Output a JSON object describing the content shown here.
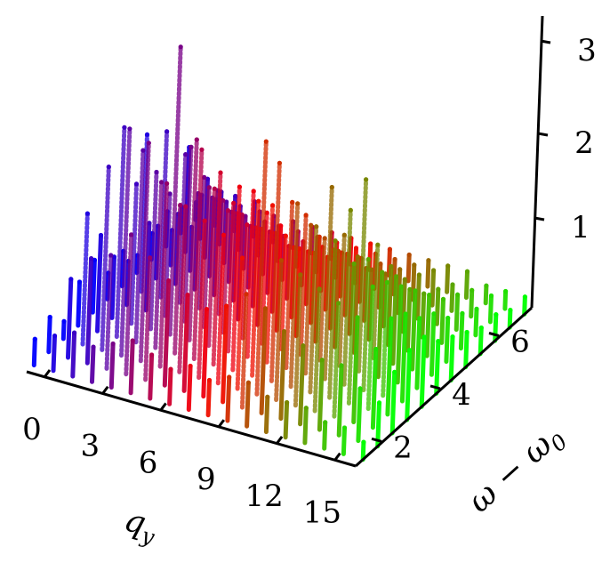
{
  "chart_data": {
    "type": "3d-scatter",
    "title": "",
    "x_axis": {
      "label": "q",
      "label_subscript": "y",
      "ticks": [
        "0",
        "3",
        "6",
        "9",
        "12",
        "15"
      ],
      "range": [
        0,
        17
      ]
    },
    "y_axis": {
      "label": "ω − ω",
      "label_subscript": "0",
      "ticks": [
        "2",
        "4",
        "6"
      ],
      "range": [
        1,
        7
      ]
    },
    "z_axis": {
      "label": "",
      "ticks": [
        "1",
        "2",
        "3"
      ],
      "range": [
        0,
        3.3
      ]
    },
    "color_gradient": {
      "along": "q_y",
      "stops": [
        "#0000ff",
        "#ff0000",
        "#00ff00"
      ]
    },
    "grid": false,
    "legend": "none",
    "series": [
      {
        "qy": 0,
        "heights": [
          0.3,
          0.4,
          0.2,
          0.5,
          0.6,
          0.3,
          0.4,
          0.2,
          0.3,
          0.4,
          0.3,
          0.2
        ]
      },
      {
        "qy": 1,
        "heights": [
          0.4,
          0.9,
          1.5,
          1.1,
          0.7,
          0.5,
          1.8,
          0.6,
          0.4,
          1.2,
          0.5,
          0.3
        ]
      },
      {
        "qy": 2,
        "heights": [
          0.5,
          1.2,
          2.1,
          2.4,
          1.6,
          1.0,
          1.9,
          0.8,
          0.5,
          0.9,
          0.6,
          0.4
        ]
      },
      {
        "qy": 3,
        "heights": [
          0.4,
          1.3,
          2.6,
          2.2,
          1.8,
          1.4,
          1.7,
          1.1,
          0.9,
          0.7,
          0.5,
          0.4
        ]
      },
      {
        "qy": 4,
        "heights": [
          0.5,
          1.6,
          2.5,
          1.9,
          3.3,
          2.0,
          1.5,
          1.2,
          0.8,
          0.6,
          0.5,
          0.3
        ]
      },
      {
        "qy": 5,
        "heights": [
          0.6,
          1.4,
          2.1,
          1.7,
          2.3,
          1.6,
          1.3,
          1.0,
          0.7,
          0.6,
          0.4,
          0.3
        ]
      },
      {
        "qy": 6,
        "heights": [
          0.5,
          1.2,
          1.9,
          2.4,
          1.8,
          1.4,
          1.2,
          0.9,
          0.7,
          0.5,
          0.4,
          0.3
        ]
      },
      {
        "qy": 7,
        "heights": [
          0.4,
          1.1,
          1.8,
          2.2,
          1.7,
          1.3,
          1.1,
          0.9,
          0.6,
          0.5,
          0.4,
          0.3
        ]
      },
      {
        "qy": 8,
        "heights": [
          0.5,
          1.0,
          1.7,
          2.1,
          1.9,
          1.5,
          1.2,
          0.8,
          0.6,
          0.5,
          0.4,
          0.3
        ]
      },
      {
        "qy": 9,
        "heights": [
          0.4,
          1.1,
          1.5,
          2.0,
          1.8,
          1.3,
          1.0,
          0.8,
          0.6,
          0.5,
          0.4,
          0.3
        ]
      },
      {
        "qy": 10,
        "heights": [
          0.5,
          1.3,
          2.9,
          2.5,
          1.9,
          1.6,
          1.2,
          0.9,
          0.7,
          0.5,
          0.4,
          0.3
        ]
      },
      {
        "qy": 11,
        "heights": [
          0.5,
          1.2,
          1.6,
          2.1,
          1.7,
          1.4,
          1.1,
          0.8,
          0.6,
          0.5,
          0.4,
          0.3
        ]
      },
      {
        "qy": 12,
        "heights": [
          0.4,
          1.0,
          1.5,
          1.9,
          2.2,
          1.5,
          1.1,
          0.8,
          0.6,
          0.5,
          0.4,
          0.3
        ]
      },
      {
        "qy": 13,
        "heights": [
          0.4,
          0.9,
          1.4,
          1.8,
          2.0,
          2.2,
          1.3,
          0.9,
          0.6,
          0.5,
          0.4,
          0.3
        ]
      },
      {
        "qy": 14,
        "heights": [
          0.4,
          0.8,
          1.3,
          1.6,
          1.5,
          1.2,
          1.0,
          0.7,
          0.5,
          0.4,
          0.3,
          0.3
        ]
      },
      {
        "qy": 15,
        "heights": [
          0.3,
          0.8,
          1.2,
          1.4,
          1.3,
          1.1,
          0.9,
          0.7,
          0.5,
          0.4,
          0.3,
          0.2
        ]
      },
      {
        "qy": 16,
        "heights": [
          0.3,
          0.6,
          0.9,
          1.1,
          1.0,
          0.8,
          0.7,
          0.5,
          0.4,
          0.3,
          0.3,
          0.2
        ]
      },
      {
        "qy": 17,
        "heights": [
          0.2,
          0.5,
          0.7,
          0.8,
          0.8,
          0.6,
          0.5,
          0.4,
          0.3,
          0.3,
          0.2,
          0.2
        ]
      }
    ]
  }
}
